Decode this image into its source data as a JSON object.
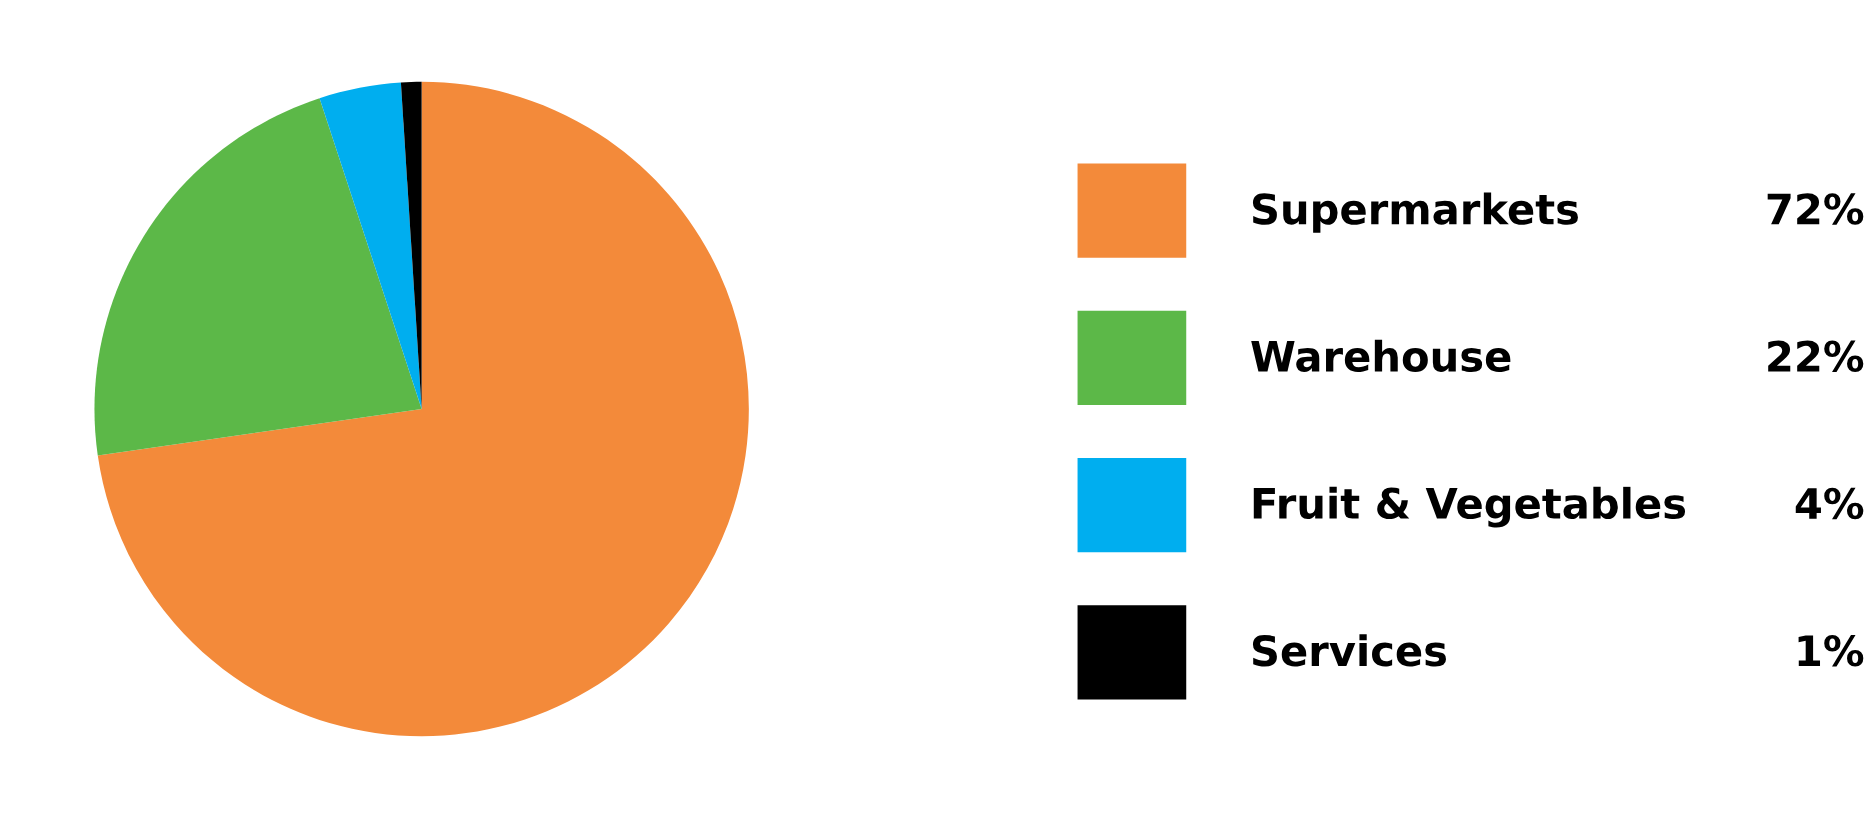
{
  "chart_data": {
    "type": "pie",
    "categories": [
      "Supermarkets",
      "Warehouse",
      "Fruit & Vegetables",
      "Services"
    ],
    "values": [
      72,
      22,
      4,
      1
    ],
    "value_labels": [
      "72%",
      "22%",
      "4%",
      "1%"
    ],
    "colors": [
      "#f38a3a",
      "#5cb848",
      "#00aeef",
      "#000000"
    ],
    "legend": "right"
  }
}
